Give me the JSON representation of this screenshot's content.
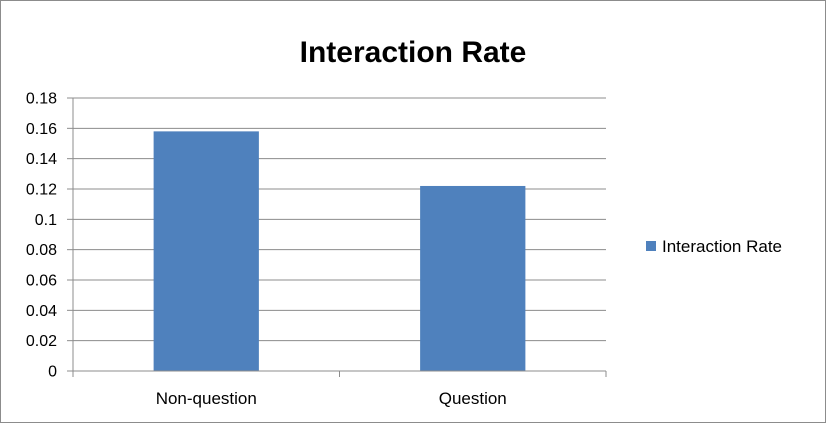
{
  "chart_data": {
    "type": "bar",
    "title": "Interaction Rate",
    "xlabel": "",
    "ylabel": "",
    "categories": [
      "Non-question",
      "Question"
    ],
    "series": [
      {
        "name": "Interaction Rate",
        "values": [
          0.158,
          0.122
        ],
        "color": "#4F81BD"
      }
    ],
    "ylim": [
      0,
      0.18
    ],
    "yticks": [
      "0",
      "0.02",
      "0.04",
      "0.06",
      "0.08",
      "0.1",
      "0.12",
      "0.14",
      "0.16",
      "0.18"
    ],
    "grid": true,
    "legend": "right"
  }
}
